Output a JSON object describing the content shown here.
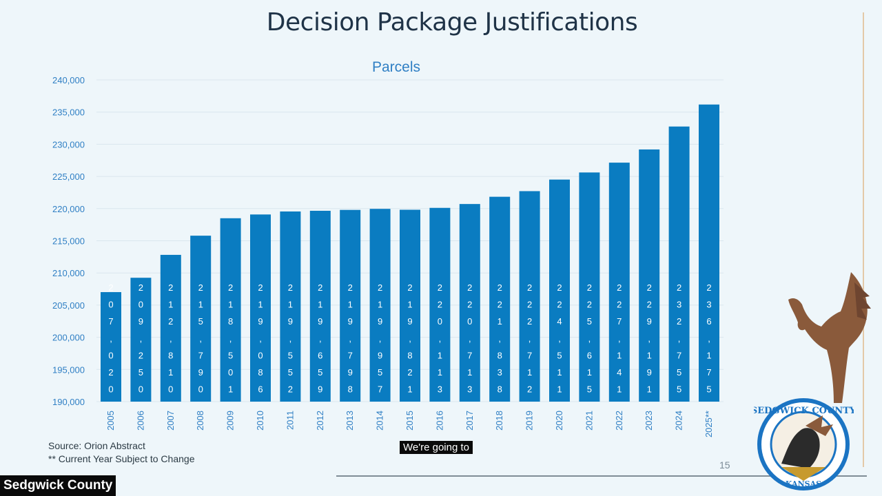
{
  "slide": {
    "title": "Decision Package Justifications",
    "source_line": "Source:  Orion Abstract",
    "note_line": "** Current Year Subject to Change",
    "page_number": "15"
  },
  "caption": "We're going to",
  "channel_badge": "Sedgwick County",
  "seal": {
    "top_text": "SEDGWICK COUNTY",
    "bottom_text": "KANSAS"
  },
  "colors": {
    "bar": "#0a7cc1",
    "tick": "#2f7fc4",
    "grid": "#d9e6ee",
    "background": "#eef6fa"
  },
  "chart_data": {
    "type": "bar",
    "title": "Parcels",
    "xlabel": "",
    "ylabel": "",
    "ylim": [
      190000,
      240000
    ],
    "yticks": [
      190000,
      195000,
      200000,
      205000,
      210000,
      215000,
      220000,
      225000,
      230000,
      235000,
      240000
    ],
    "ytick_labels": [
      "190,000",
      "195,000",
      "200,000",
      "205,000",
      "210,000",
      "215,000",
      "220,000",
      "225,000",
      "230,000",
      "235,000",
      "240,000"
    ],
    "categories": [
      "2005",
      "2006",
      "2007",
      "2008",
      "2009",
      "2010",
      "2011",
      "2012",
      "2013",
      "2014",
      "2015",
      "2016",
      "2017",
      "2018",
      "2019",
      "2020",
      "2021",
      "2022",
      "2023",
      "2024",
      "2025**"
    ],
    "values": [
      207020,
      209250,
      212810,
      215790,
      218501,
      219086,
      219552,
      219659,
      219798,
      219957,
      219821,
      220113,
      220713,
      221838,
      222712,
      224511,
      225615,
      227141,
      229191,
      232755,
      236175
    ],
    "data_labels": [
      "207,020",
      "209,250",
      "212,810",
      "215,790",
      "218,501",
      "219,086",
      "219,552",
      "219,659",
      "219,798",
      "219,957",
      "219,821",
      "220,113",
      "220,713",
      "221,838",
      "222,712",
      "224,511",
      "225,615",
      "227,141",
      "229,191",
      "232,755",
      "236,175"
    ],
    "grid": true,
    "legend": "none"
  }
}
